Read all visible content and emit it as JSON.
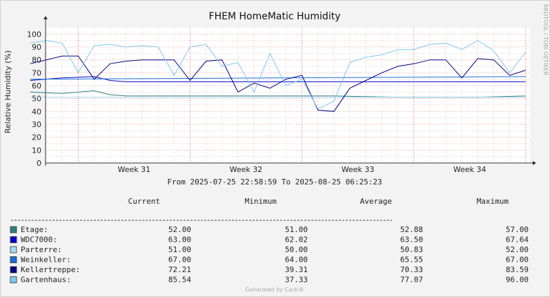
{
  "chart_data": {
    "type": "line",
    "title": "FHEM HomeMatic Humidity",
    "ylabel": "Relative Humidity (%)",
    "ylim": [
      0,
      105
    ],
    "yticks": [
      0,
      10,
      20,
      30,
      40,
      50,
      60,
      70,
      80,
      90,
      100
    ],
    "x_tick_labels": [
      "Week 31",
      "Week 32",
      "Week 33",
      "Week 34"
    ],
    "x_range": [
      "2025-07-25 22:58:59",
      "2025-08-25 06:25:23"
    ],
    "week_tick_dates": [
      "2025-07-28",
      "2025-08-04",
      "2025-08-11",
      "2025-08-18",
      "2025-08-25"
    ],
    "daily_gridlines": true,
    "range_text": "From 2025-07-25 22:58:59 To 2025-08-25 06:25:23",
    "side_text": "RRDTOOL / TOBI OETIKER",
    "footer": "Generated by Cacti®",
    "table_headers": [
      "Current",
      "Minimum",
      "Average",
      "Maximum"
    ],
    "series": [
      {
        "name": "Etage:",
        "color": "#2f7f7f",
        "current": "52.00",
        "minimum": "51.00",
        "average": "52.88",
        "maximum": "57.00",
        "x": [
          "2025-07-25",
          "2025-07-27",
          "2025-07-29",
          "2025-07-30",
          "2025-07-31",
          "2025-08-02",
          "2025-08-05",
          "2025-08-10",
          "2025-08-13",
          "2025-08-17",
          "2025-08-22",
          "2025-08-25"
        ],
        "values": [
          55,
          54,
          56,
          53,
          52,
          52,
          52,
          52,
          52,
          51,
          51,
          52
        ]
      },
      {
        "name": "WDC7000:",
        "color": "#0000c8",
        "current": "63.00",
        "minimum": "62.02",
        "average": "63.50",
        "maximum": "67.64",
        "x": [
          "2025-07-25",
          "2025-07-27",
          "2025-07-29",
          "2025-07-30",
          "2025-07-31",
          "2025-08-05",
          "2025-08-10",
          "2025-08-15",
          "2025-08-20",
          "2025-08-25"
        ],
        "values": [
          64,
          66,
          67,
          64,
          63,
          63,
          63,
          63,
          63,
          63
        ]
      },
      {
        "name": "Parterre:",
        "color": "#a8d8f0",
        "current": "51.00",
        "minimum": "50.00",
        "average": "50.83",
        "maximum": "52.00",
        "x": [
          "2025-07-25",
          "2025-08-25"
        ],
        "values": [
          51,
          51
        ]
      },
      {
        "name": "Weinkeller:",
        "color": "#1a6fd8",
        "current": "67.00",
        "minimum": "64.00",
        "average": "65.55",
        "maximum": "67.00",
        "x": [
          "2025-07-25",
          "2025-08-25"
        ],
        "values": [
          65,
          67
        ]
      },
      {
        "name": "Kellertreppe:",
        "color": "#000080",
        "current": "72.21",
        "minimum": "39.31",
        "average": "70.33",
        "maximum": "83.59",
        "x": [
          "2025-07-25",
          "2025-07-27",
          "2025-07-28",
          "2025-07-29",
          "2025-07-30",
          "2025-07-31",
          "2025-08-01",
          "2025-08-02",
          "2025-08-03",
          "2025-08-04",
          "2025-08-05",
          "2025-08-06",
          "2025-08-07",
          "2025-08-08",
          "2025-08-09",
          "2025-08-10",
          "2025-08-11",
          "2025-08-12",
          "2025-08-13",
          "2025-08-14",
          "2025-08-15",
          "2025-08-16",
          "2025-08-17",
          "2025-08-18",
          "2025-08-19",
          "2025-08-20",
          "2025-08-21",
          "2025-08-22",
          "2025-08-23",
          "2025-08-24",
          "2025-08-25"
        ],
        "values": [
          77,
          83,
          83,
          65,
          77,
          79,
          80,
          80,
          80,
          64,
          79,
          80,
          55,
          62,
          58,
          65,
          68,
          41,
          40,
          58,
          64,
          70,
          75,
          77,
          80,
          80,
          66,
          81,
          80,
          68,
          72
        ]
      },
      {
        "name": "Gartenhaus:",
        "color": "#7ec8f0",
        "current": "85.54",
        "minimum": "37.33",
        "average": "77.07",
        "maximum": "96.00",
        "x": [
          "2025-07-25",
          "2025-07-26",
          "2025-07-27",
          "2025-07-28",
          "2025-07-29",
          "2025-07-30",
          "2025-07-31",
          "2025-08-01",
          "2025-08-02",
          "2025-08-03",
          "2025-08-04",
          "2025-08-05",
          "2025-08-06",
          "2025-08-07",
          "2025-08-08",
          "2025-08-09",
          "2025-08-10",
          "2025-08-11",
          "2025-08-12",
          "2025-08-13",
          "2025-08-14",
          "2025-08-15",
          "2025-08-16",
          "2025-08-17",
          "2025-08-18",
          "2025-08-19",
          "2025-08-20",
          "2025-08-21",
          "2025-08-22",
          "2025-08-23",
          "2025-08-24",
          "2025-08-25"
        ],
        "values": [
          93,
          95,
          93,
          70,
          91,
          92,
          90,
          91,
          90,
          68,
          90,
          92,
          75,
          78,
          55,
          85,
          60,
          65,
          42,
          48,
          78,
          82,
          84,
          88,
          88,
          92,
          93,
          88,
          95,
          87,
          70,
          86
        ]
      }
    ]
  }
}
